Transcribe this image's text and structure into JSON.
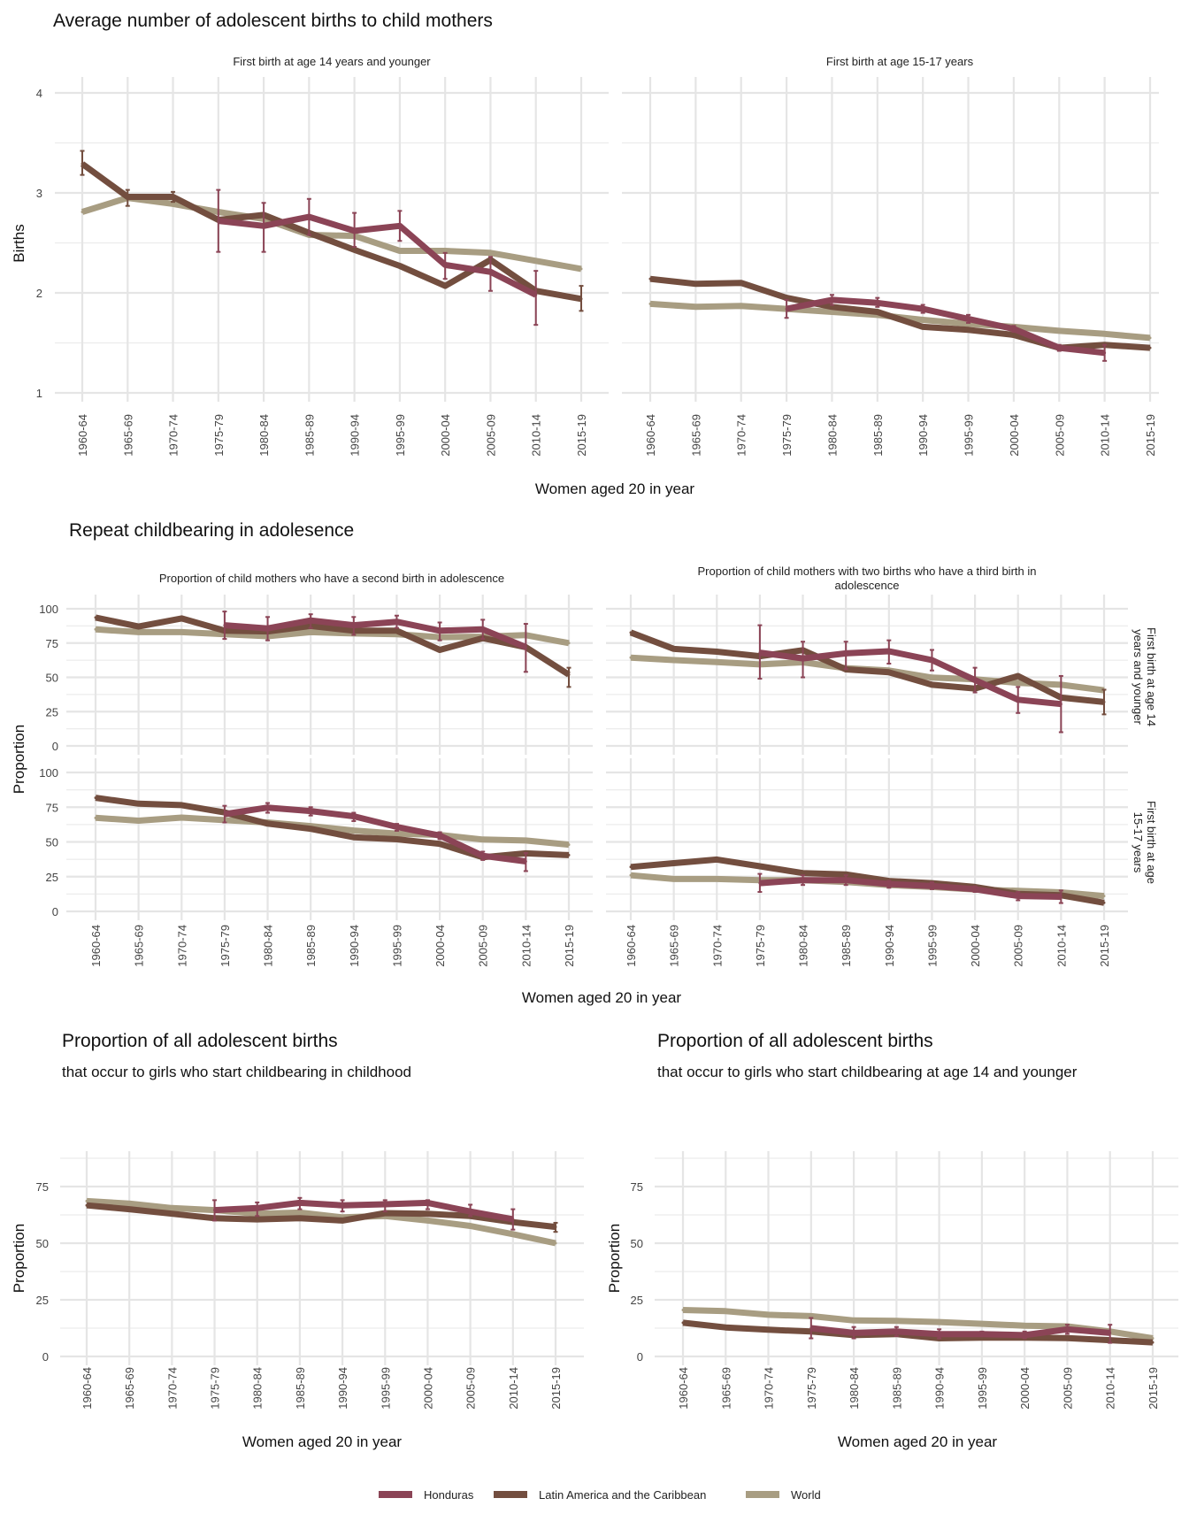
{
  "colors": {
    "Honduras": "#8B4456",
    "Latin America and the Caribbean": "#734E3F",
    "World": "#A89D82"
  },
  "legend": [
    "Honduras",
    "Latin America and the Caribbean",
    "World"
  ],
  "x_categories": [
    "1960-64",
    "1965-69",
    "1970-74",
    "1975-79",
    "1980-84",
    "1985-89",
    "1990-94",
    "1995-99",
    "2000-04",
    "2005-09",
    "2010-14",
    "2015-19"
  ],
  "section1": {
    "title": "Average number of adolescent births to child mothers",
    "ylabel": "Births",
    "xlabel": "Women aged 20 in year"
  },
  "section2": {
    "title": "Repeat childbearing in adolesence",
    "ylabel": "Proportion",
    "xlabel": "Women aged 20 in year",
    "col_titles": [
      "Proportion of child mothers who have a second birth in adolescence",
      "Proportion of child mothers with two births who have a third birth in",
      "adolescence"
    ],
    "row_labels": [
      [
        "First birth at age 14",
        "years and younger"
      ],
      [
        "First birth at age",
        "15-17 years"
      ]
    ]
  },
  "section3": {
    "left_title": "Proportion of all adolescent births",
    "left_subtitle": "that occur to girls who start childbearing in childhood",
    "right_title": "Proportion of all adolescent births",
    "right_subtitle": "that occur to girls who start childbearing at age 14 and younger",
    "ylabel": "Proportion",
    "xlabel": "Women aged 20 in year"
  },
  "chart_data": [
    {
      "id": "births_14",
      "type": "line",
      "title": "First birth at age 14 years and younger",
      "ylabel": "Births",
      "xlabel": "Women aged 20 in year",
      "ylim": [
        1,
        4
      ],
      "yticks": [
        1,
        2,
        3,
        4
      ],
      "series": [
        {
          "name": "Honduras",
          "values": [
            null,
            null,
            null,
            2.72,
            2.67,
            2.76,
            2.62,
            2.67,
            2.28,
            2.21,
            1.98,
            null
          ],
          "err_low": [
            null,
            null,
            null,
            2.41,
            2.41,
            2.58,
            2.46,
            2.52,
            2.14,
            2.02,
            1.68,
            null
          ],
          "err_high": [
            null,
            null,
            null,
            3.03,
            2.9,
            2.94,
            2.8,
            2.82,
            2.4,
            2.36,
            2.22,
            null
          ]
        },
        {
          "name": "Latin America and the Caribbean",
          "values": [
            3.29,
            2.96,
            2.96,
            2.73,
            2.78,
            2.6,
            2.43,
            2.27,
            2.07,
            2.33,
            2.02,
            1.94
          ],
          "err_low": [
            3.18,
            2.87,
            2.91,
            null,
            null,
            null,
            null,
            null,
            null,
            null,
            null,
            1.82
          ],
          "err_high": [
            3.42,
            3.03,
            3.01,
            null,
            null,
            null,
            null,
            null,
            null,
            null,
            null,
            2.07
          ]
        },
        {
          "name": "World",
          "values": [
            2.81,
            2.95,
            2.89,
            2.81,
            2.74,
            2.58,
            2.57,
            2.42,
            2.42,
            2.4,
            2.32,
            2.24
          ]
        }
      ]
    },
    {
      "id": "births_15_17",
      "type": "line",
      "title": "First birth at age 15-17 years",
      "ylim": [
        1,
        4
      ],
      "yticks": [
        1,
        2,
        3,
        4
      ],
      "series": [
        {
          "name": "Honduras",
          "values": [
            null,
            null,
            null,
            1.84,
            1.93,
            1.9,
            1.84,
            1.74,
            1.64,
            1.45,
            1.4,
            null
          ],
          "err_low": [
            null,
            null,
            null,
            1.75,
            1.88,
            1.86,
            1.8,
            1.7,
            1.61,
            1.42,
            1.32,
            null
          ],
          "err_high": [
            null,
            null,
            null,
            1.93,
            1.98,
            1.95,
            1.88,
            1.78,
            1.67,
            1.48,
            1.48,
            null
          ]
        },
        {
          "name": "Latin America and the Caribbean",
          "values": [
            2.14,
            2.09,
            2.1,
            1.95,
            1.86,
            1.81,
            1.66,
            1.63,
            1.58,
            1.45,
            1.48,
            1.45
          ]
        },
        {
          "name": "World",
          "values": [
            1.89,
            1.86,
            1.87,
            1.84,
            1.81,
            1.78,
            1.73,
            1.69,
            1.66,
            1.62,
            1.59,
            1.55
          ]
        }
      ]
    },
    {
      "id": "second_birth_14",
      "type": "line",
      "title": "Proportion of child mothers who have a second birth in adolescence",
      "row": "First birth at age 14 years and younger",
      "ylim": [
        0,
        100
      ],
      "yticks": [
        0,
        25,
        50,
        75,
        100
      ],
      "series": [
        {
          "name": "Honduras",
          "values": [
            null,
            null,
            null,
            88,
            85.7,
            91.5,
            88,
            90.5,
            84,
            85,
            72,
            null
          ],
          "err_low": [
            null,
            null,
            null,
            78,
            77,
            86,
            81,
            86,
            77,
            78,
            54,
            null
          ],
          "err_high": [
            null,
            null,
            null,
            98,
            94,
            96,
            94,
            95,
            90,
            92,
            89,
            null
          ]
        },
        {
          "name": "Latin America and the Caribbean",
          "values": [
            93.6,
            87,
            93,
            84,
            83.5,
            87.5,
            84,
            84,
            70,
            78.6,
            72,
            52
          ],
          "err_low": [
            null,
            null,
            null,
            null,
            null,
            null,
            null,
            null,
            null,
            null,
            null,
            43
          ],
          "err_high": [
            null,
            null,
            null,
            null,
            null,
            null,
            null,
            null,
            null,
            null,
            null,
            57
          ]
        },
        {
          "name": "World",
          "values": [
            85,
            83,
            83,
            81.4,
            80,
            83,
            82,
            81.4,
            79.3,
            79.7,
            80.8,
            75
          ]
        }
      ]
    },
    {
      "id": "third_birth_14",
      "type": "line",
      "title": "Proportion of child mothers with two births who have a third birth in adolescence",
      "row": "First birth at age 14 years and younger",
      "ylim": [
        0,
        100
      ],
      "yticks": [
        0,
        25,
        50,
        75,
        100
      ],
      "series": [
        {
          "name": "Honduras",
          "values": [
            null,
            null,
            null,
            68,
            63.8,
            67.5,
            69,
            62.6,
            48,
            33.7,
            30.5,
            null
          ],
          "err_low": [
            null,
            null,
            null,
            49,
            50,
            56,
            60,
            55,
            39,
            24,
            10,
            null
          ],
          "err_high": [
            null,
            null,
            null,
            88,
            76,
            76,
            77,
            70,
            57,
            43,
            51,
            null
          ]
        },
        {
          "name": "Latin America and the Caribbean",
          "values": [
            82.7,
            70.8,
            68.7,
            65.4,
            69.8,
            55.8,
            53.7,
            44.6,
            41.8,
            51,
            35.2,
            32
          ],
          "err_low": [
            null,
            null,
            null,
            null,
            null,
            null,
            null,
            null,
            null,
            null,
            null,
            23
          ],
          "err_high": [
            null,
            null,
            null,
            null,
            null,
            null,
            null,
            null,
            null,
            null,
            null,
            41
          ]
        },
        {
          "name": "World",
          "values": [
            64.4,
            62.6,
            61.1,
            59.4,
            61,
            56.7,
            55,
            49.8,
            48.6,
            46,
            44.6,
            40.6
          ]
        }
      ]
    },
    {
      "id": "second_birth_15_17",
      "type": "line",
      "title": "Proportion of child mothers who have a second birth in adolescence",
      "row": "First birth at age 15-17 years",
      "ylim": [
        0,
        100
      ],
      "yticks": [
        0,
        25,
        50,
        75,
        100
      ],
      "series": [
        {
          "name": "Honduras",
          "values": [
            null,
            null,
            null,
            70,
            74.7,
            72.2,
            68.5,
            60.8,
            54.6,
            40,
            36,
            null
          ],
          "err_low": [
            null,
            null,
            null,
            64,
            71,
            69,
            65,
            58,
            52,
            37,
            29,
            null
          ],
          "err_high": [
            null,
            null,
            null,
            76,
            78,
            75,
            71,
            63,
            57,
            43,
            42,
            null
          ]
        },
        {
          "name": "Latin America and the Caribbean",
          "values": [
            81.8,
            77.5,
            76.5,
            71.2,
            63.2,
            59.4,
            53.4,
            51.9,
            48.6,
            39,
            41.8,
            40.5
          ]
        },
        {
          "name": "World",
          "values": [
            67.3,
            65.3,
            67.5,
            65.7,
            64,
            61.4,
            58.2,
            56,
            55,
            51.7,
            51,
            48
          ]
        }
      ]
    },
    {
      "id": "third_birth_15_17",
      "type": "line",
      "title": "Proportion of child mothers with two births who have a third birth in adolescence",
      "row": "First birth at age 15-17 years",
      "ylim": [
        0,
        100
      ],
      "yticks": [
        0,
        25,
        50,
        75,
        100
      ],
      "series": [
        {
          "name": "Honduras",
          "values": [
            null,
            null,
            null,
            20.3,
            22.5,
            22.5,
            19.7,
            18.2,
            16,
            11.1,
            10.5,
            null
          ],
          "err_low": [
            null,
            null,
            null,
            14,
            19,
            19,
            17,
            16,
            14,
            8,
            6,
            null
          ],
          "err_high": [
            null,
            null,
            null,
            27,
            26,
            26,
            22,
            21,
            18,
            14,
            15,
            null
          ]
        },
        {
          "name": "Latin America and the Caribbean",
          "values": [
            32,
            34.7,
            37.3,
            32.5,
            27.6,
            26.6,
            21.9,
            20.3,
            17.6,
            12.6,
            11.6,
            6.2
          ]
        },
        {
          "name": "World",
          "values": [
            26,
            23.3,
            23.3,
            22.5,
            22.5,
            21.2,
            19,
            17.6,
            15.8,
            14.8,
            13.7,
            11.1
          ]
        }
      ]
    },
    {
      "id": "share_childhood",
      "type": "line",
      "title": "Proportion of all adolescent births",
      "subtitle": "that occur to girls who start childbearing in childhood",
      "ylim": [
        0,
        90
      ],
      "yticks": [
        0,
        25,
        50,
        75
      ],
      "series": [
        {
          "name": "Honduras",
          "values": [
            null,
            null,
            null,
            64.6,
            65.5,
            67.8,
            66.7,
            67.2,
            67.8,
            64,
            60.6,
            null
          ],
          "err_low": [
            null,
            null,
            null,
            60,
            62,
            65,
            64,
            64,
            65,
            62,
            56,
            null
          ],
          "err_high": [
            null,
            null,
            null,
            69,
            68,
            70,
            69,
            69,
            69,
            67,
            65,
            null
          ]
        },
        {
          "name": "Latin America and the Caribbean",
          "values": [
            66.7,
            65,
            63,
            61,
            60.5,
            61,
            60,
            63.3,
            63,
            62,
            59.3,
            57.2
          ],
          "err_low": [
            null,
            null,
            null,
            null,
            null,
            null,
            null,
            null,
            null,
            null,
            null,
            55
          ],
          "err_high": [
            null,
            null,
            null,
            null,
            null,
            null,
            null,
            null,
            null,
            null,
            null,
            59
          ]
        },
        {
          "name": "World",
          "values": [
            68.6,
            67.5,
            65.5,
            64.6,
            63,
            63.5,
            61.4,
            62,
            60,
            57.6,
            54,
            50
          ]
        }
      ]
    },
    {
      "id": "share_14",
      "type": "line",
      "title": "Proportion of all adolescent births",
      "subtitle": "that occur to girls who start childbearing at age 14 and younger",
      "ylim": [
        0,
        90
      ],
      "yticks": [
        0,
        25,
        50,
        75
      ],
      "series": [
        {
          "name": "Honduras",
          "values": [
            null,
            null,
            null,
            12.5,
            10.4,
            11,
            9.9,
            9.9,
            9.4,
            12,
            10.4,
            null
          ],
          "err_low": [
            null,
            null,
            null,
            8,
            8,
            9,
            8,
            9,
            8,
            10,
            6,
            null
          ],
          "err_high": [
            null,
            null,
            null,
            17,
            13,
            13,
            12,
            11,
            11,
            14,
            14,
            null
          ]
        },
        {
          "name": "Latin America and the Caribbean",
          "values": [
            14.9,
            12.8,
            11.8,
            11,
            9.4,
            9.9,
            8,
            8.3,
            8.3,
            8.1,
            7.2,
            6.2
          ]
        },
        {
          "name": "World",
          "values": [
            20.5,
            20,
            18.4,
            17.8,
            15.9,
            15.7,
            15.2,
            14.4,
            13.6,
            13.3,
            11,
            8
          ]
        }
      ]
    }
  ]
}
